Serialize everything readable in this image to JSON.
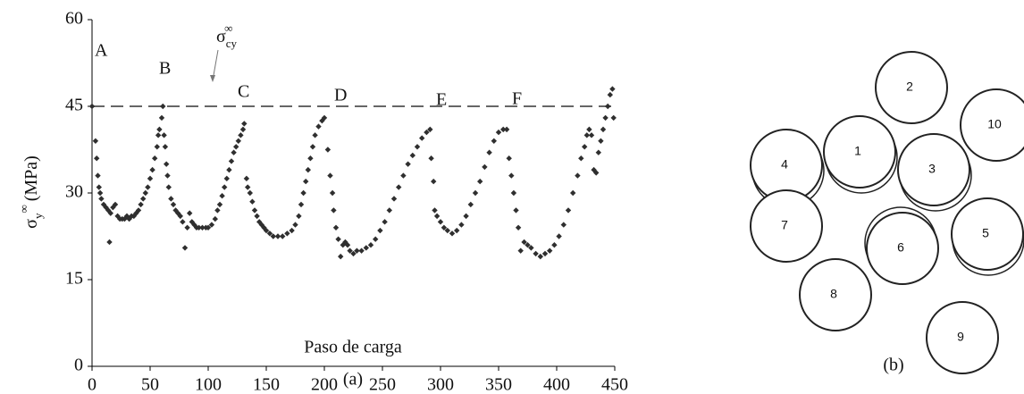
{
  "chart_data": {
    "type": "scatter",
    "xlabel": "Paso de carga",
    "caption": "(a)",
    "ylabel": {
      "symbol": "σ",
      "sub": "y",
      "sup": "∞",
      "unit": "(MPa)"
    },
    "color": "#2f2f2f",
    "reference": {
      "value": 45,
      "color": "#666666",
      "symbol": "σ",
      "sub": "cy",
      "sup": "∞"
    },
    "annotations": [
      "A",
      "B",
      "C",
      "D",
      "E",
      "F"
    ],
    "xlim": [
      0,
      450
    ],
    "xticks": [
      0,
      50,
      100,
      150,
      200,
      250,
      300,
      350,
      400,
      450
    ],
    "ylim": [
      0,
      60
    ],
    "yticks": [
      0,
      15,
      30,
      45,
      60
    ],
    "x": [
      0,
      3,
      4,
      5,
      6,
      7,
      8,
      10,
      12,
      14,
      15,
      16,
      18,
      20,
      22,
      24,
      26,
      28,
      30,
      32,
      34,
      36,
      38,
      40,
      42,
      44,
      46,
      48,
      50,
      52,
      54,
      56,
      57,
      58,
      60,
      61,
      62,
      63,
      64,
      65,
      66,
      68,
      70,
      72,
      74,
      76,
      78,
      80,
      82,
      84,
      86,
      88,
      90,
      92,
      95,
      98,
      100,
      103,
      106,
      108,
      110,
      112,
      114,
      116,
      118,
      120,
      122,
      124,
      126,
      128,
      130,
      131,
      133,
      134,
      136,
      138,
      140,
      142,
      144,
      146,
      148,
      150,
      153,
      156,
      160,
      164,
      168,
      172,
      175,
      178,
      180,
      182,
      184,
      186,
      188,
      190,
      192,
      195,
      198,
      200,
      203,
      205,
      207,
      208,
      210,
      212,
      214,
      216,
      218,
      220,
      222,
      225,
      228,
      232,
      236,
      240,
      244,
      248,
      252,
      256,
      260,
      264,
      268,
      272,
      276,
      280,
      284,
      288,
      291,
      292,
      294,
      295,
      297,
      300,
      303,
      306,
      310,
      314,
      318,
      322,
      326,
      330,
      334,
      338,
      342,
      346,
      350,
      354,
      357,
      359,
      361,
      363,
      365,
      367,
      369,
      372,
      375,
      378,
      382,
      386,
      390,
      394,
      398,
      402,
      406,
      410,
      414,
      418,
      421,
      424,
      426,
      428,
      430,
      432,
      434,
      436,
      438,
      440,
      442,
      444,
      446,
      448,
      449
    ],
    "values": [
      45,
      39,
      36,
      33,
      31,
      30,
      29,
      28,
      27.5,
      27,
      21.5,
      26.5,
      27.5,
      28,
      26,
      25.5,
      25.5,
      25.5,
      26,
      25.5,
      26,
      26,
      26.5,
      27,
      28,
      29,
      30,
      31,
      32.5,
      34,
      36,
      38,
      40,
      41,
      43,
      45,
      40,
      38,
      35,
      33,
      31,
      29,
      28,
      27,
      26.5,
      26,
      25,
      20.5,
      24,
      26.5,
      25,
      24.5,
      24,
      24,
      24,
      24,
      24,
      24.5,
      25.5,
      27,
      28,
      29.5,
      31,
      32.5,
      34,
      35.5,
      37,
      38,
      39,
      40,
      41,
      42,
      32.5,
      31,
      30,
      28.5,
      27,
      26,
      25,
      24.5,
      24,
      23.5,
      23,
      22.5,
      22.5,
      22.5,
      23,
      23.5,
      24.5,
      26,
      28,
      30,
      32,
      34,
      36,
      38,
      40,
      41.5,
      42.5,
      43,
      37.5,
      33,
      30,
      27,
      24,
      22,
      19,
      21,
      21.5,
      21,
      20,
      19.5,
      20,
      20,
      20.5,
      21,
      22,
      23.5,
      25,
      27,
      29,
      31,
      33,
      35,
      36.5,
      38,
      39.5,
      40.5,
      41,
      36,
      32,
      27,
      26,
      25,
      24,
      23.5,
      23,
      23.5,
      24.5,
      26,
      28,
      30,
      32,
      34.5,
      37,
      39,
      40.5,
      41,
      41,
      36,
      33,
      30,
      27,
      24,
      20,
      21.5,
      21,
      20.5,
      19.5,
      19,
      19.5,
      20,
      21,
      22.5,
      24.5,
      27,
      30,
      33,
      36,
      38,
      40,
      41,
      40,
      34,
      33.5,
      37,
      39,
      41,
      43,
      45,
      47,
      48,
      43
    ]
  },
  "diagram": {
    "caption": "(b)",
    "nodes": [
      {
        "label": "1"
      },
      {
        "label": "2"
      },
      {
        "label": "3"
      },
      {
        "label": "4"
      },
      {
        "label": "5"
      },
      {
        "label": "6"
      },
      {
        "label": "7"
      },
      {
        "label": "8"
      },
      {
        "label": "9"
      },
      {
        "label": "10"
      }
    ]
  }
}
